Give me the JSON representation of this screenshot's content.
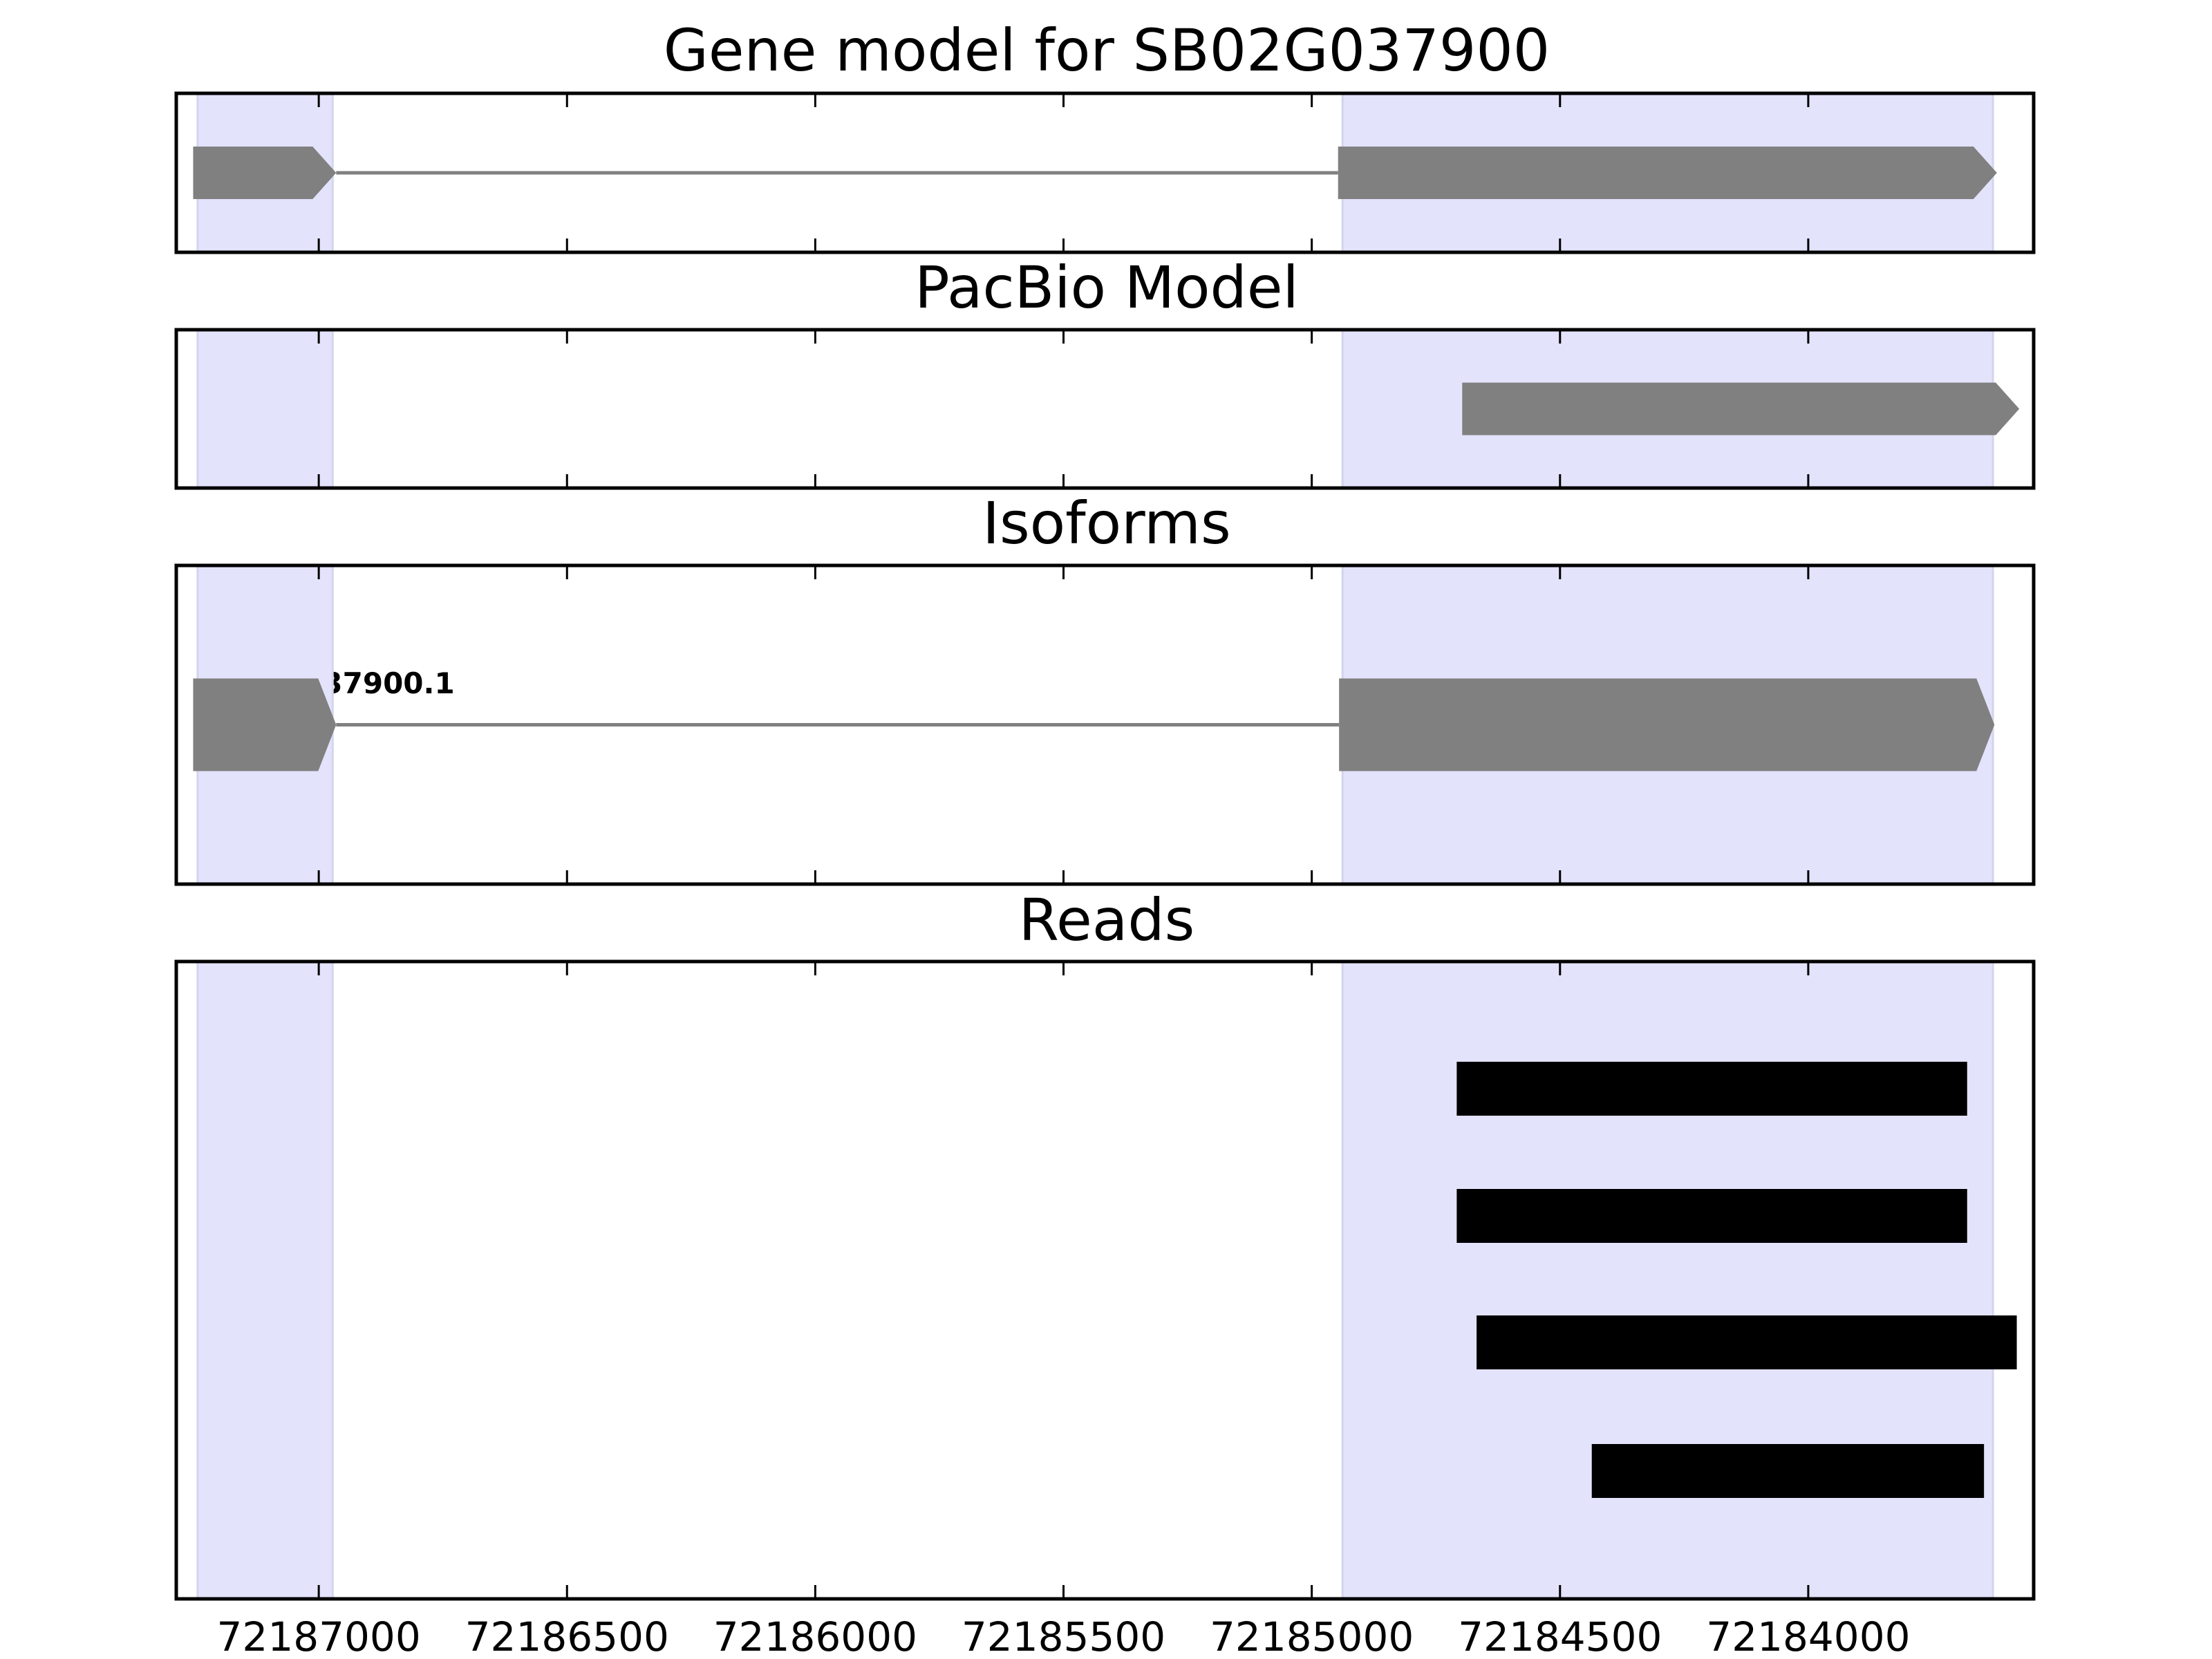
{
  "chart_data": {
    "type": "gene-track",
    "xlim": [
      72187287,
      72183546
    ],
    "x_reversed": true,
    "ticks": [
      72187000,
      72186500,
      72186000,
      72185500,
      72185000,
      72184500,
      72184000
    ],
    "tick_labels": [
      "72187000",
      "72186500",
      "72186000",
      "72185500",
      "72185000",
      "72184500",
      "72184000"
    ],
    "highlight_regions": [
      [
        72187244,
        72186972
      ],
      [
        72184938,
        72183628
      ]
    ],
    "colors": {
      "highlight": "#e3e3fc",
      "gene": "#808080",
      "read": "#000000",
      "axis": "#000000"
    },
    "panels": [
      {
        "title": "Gene model for SB02G037900",
        "kind": "gene",
        "exons": [
          [
            72187253,
            72186965
          ],
          [
            72184947,
            72183620
          ]
        ],
        "strand": "-"
      },
      {
        "title": "PacBio Model",
        "kind": "gene",
        "exons": [
          [
            72184697,
            72183575
          ]
        ],
        "strand": "-"
      },
      {
        "title": "Isoforms",
        "kind": "gene",
        "label": "SB02G037900.1",
        "exons": [
          [
            72187253,
            72186965
          ],
          [
            72184945,
            72183625
          ]
        ],
        "strand": "-"
      },
      {
        "title": "Reads",
        "kind": "reads",
        "reads": [
          [
            72184708,
            72183680
          ],
          [
            72184708,
            72183680
          ],
          [
            72184668,
            72183580
          ],
          [
            72184436,
            72183646
          ]
        ]
      }
    ]
  }
}
